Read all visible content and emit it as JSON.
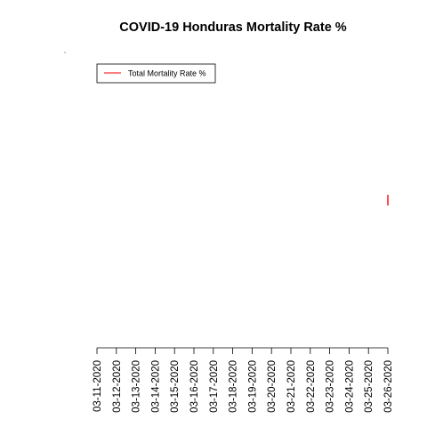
{
  "chart_data": {
    "type": "line",
    "title": "COVID-19 Honduras Mortality Rate %",
    "xlabel": "",
    "ylabel": "",
    "x": [
      "03-11-2020",
      "03-12-2020",
      "03-13-2020",
      "03-14-2020",
      "03-15-2020",
      "03-16-2020",
      "03-17-2020",
      "03-18-2020",
      "03-19-2020",
      "03-20-2020",
      "03-21-2020",
      "03-22-2020",
      "03-23-2020",
      "03-24-2020",
      "03-25-2020",
      "03-26-2020"
    ],
    "series": [
      {
        "name": "Total Mortality Rate %",
        "color": "#ff0000",
        "values": [
          null,
          null,
          null,
          null,
          null,
          null,
          null,
          null,
          null,
          null,
          null,
          null,
          null,
          null,
          null,
          1.9
        ]
      }
    ],
    "ylim": [
      1.8,
      2.0
    ],
    "grid": false,
    "legend": "top-left"
  }
}
